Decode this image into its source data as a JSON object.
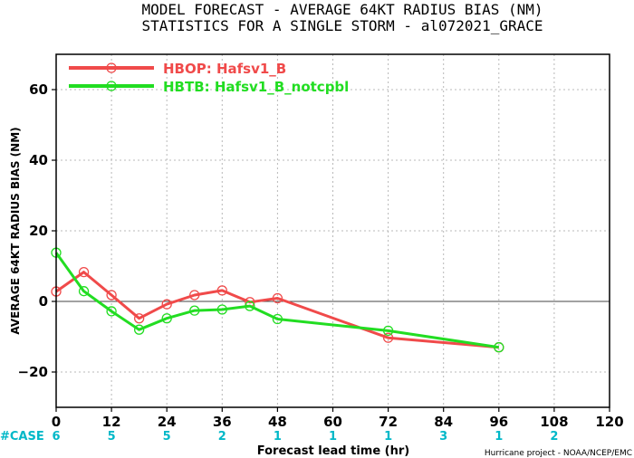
{
  "chart_data": {
    "type": "line",
    "title_line1": "MODEL FORECAST - AVERAGE 64KT RADIUS BIAS (NM)",
    "title_line2": "STATISTICS FOR A SINGLE STORM - al072021_GRACE",
    "xlabel": "Forecast lead time (hr)",
    "ylabel": "AVERAGE 64KT RADIUS BIAS (NM)",
    "xlim": [
      0,
      120
    ],
    "ylim": [
      -30,
      70
    ],
    "x_ticks": [
      0,
      12,
      24,
      36,
      48,
      60,
      72,
      84,
      96,
      108,
      120
    ],
    "y_ticks": [
      -20,
      0,
      20,
      40,
      60
    ],
    "grid": true,
    "legend_position": "top-left",
    "zero_line": true,
    "series": [
      {
        "name": "HBOP: Hafsv1_B",
        "color": "#f04a4a",
        "x": [
          0,
          6,
          12,
          18,
          24,
          30,
          36,
          42,
          48,
          72,
          96
        ],
        "y": [
          2.8,
          8.3,
          1.8,
          -4.8,
          -0.8,
          1.8,
          3.1,
          -0.2,
          0.9,
          -10.3,
          -13.0
        ]
      },
      {
        "name": "HBTB: Hafsv1_B_notcpbl",
        "color": "#22dd22",
        "x": [
          0,
          6,
          12,
          18,
          24,
          30,
          36,
          42,
          48,
          72,
          96
        ],
        "y": [
          13.8,
          2.9,
          -2.8,
          -8.0,
          -4.8,
          -2.6,
          -2.3,
          -1.3,
          -5.0,
          -8.3,
          -13.0
        ]
      }
    ],
    "case_label": "#CASE",
    "case_color": "#00b8c8",
    "case_x": [
      0,
      12,
      24,
      36,
      48,
      60,
      72,
      84,
      96,
      108
    ],
    "case_counts": [
      "6",
      "5",
      "5",
      "2",
      "1",
      "1",
      "1",
      "3",
      "1",
      "2"
    ],
    "credit": "Hurricane project - NOAA/NCEP/EMC"
  }
}
